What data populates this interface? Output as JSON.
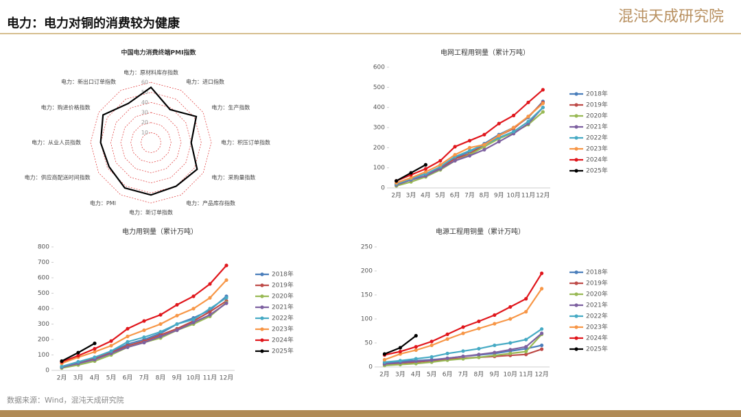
{
  "header": {
    "title": "电力：电力对铜的消费较为健康",
    "logo": "混沌天成研究院"
  },
  "footer": {
    "source": "数据来源：Wind，混沌天成研究院"
  },
  "chart_data": [
    {
      "type": "radar",
      "title": "中国电力消费终端PMI指数",
      "categories": [
        "电力：原材料库存指数",
        "电力：进口指数",
        "电力：生产指数",
        "电力：积压订单指数",
        "电力：采购量指数",
        "电力：产品库存指数",
        "电力：新订单指数",
        "电力：PMI",
        "电力：供应商配送时间指数",
        "电力：从业人员指数",
        "电力：购进价格指数",
        "电力：新出口订单指数"
      ],
      "values": [
        55,
        38,
        52,
        40,
        53,
        50,
        52,
        52,
        48,
        50,
        55,
        45
      ],
      "color": "#000000",
      "grid_color": "#e03030",
      "rlim": [
        0,
        60
      ],
      "rticks": [
        10,
        20,
        30,
        40,
        50,
        60
      ]
    },
    {
      "type": "line",
      "title": "电网工程用铜量（累计万吨）",
      "categories": [
        "2月",
        "3月",
        "4月",
        "5月",
        "6月",
        "7月",
        "8月",
        "9月",
        "10月",
        "11月",
        "12月"
      ],
      "ylim": [
        0,
        600
      ],
      "yticks": [
        0,
        100,
        200,
        300,
        400,
        500,
        600
      ],
      "series": [
        {
          "name": "2018年",
          "color": "#4a7ebb",
          "values": [
            20,
            45,
            70,
            100,
            150,
            180,
            220,
            265,
            300,
            350,
            430
          ]
        },
        {
          "name": "2019年",
          "color": "#be4b48",
          "values": [
            20,
            45,
            70,
            100,
            145,
            170,
            215,
            260,
            295,
            355,
            425
          ]
        },
        {
          "name": "2020年",
          "color": "#98b954",
          "values": [
            10,
            30,
            55,
            90,
            135,
            165,
            205,
            245,
            275,
            315,
            378
          ]
        },
        {
          "name": "2021年",
          "color": "#7d60a0",
          "values": [
            15,
            40,
            60,
            95,
            135,
            160,
            190,
            230,
            270,
            320,
            400
          ]
        },
        {
          "name": "2022年",
          "color": "#46aac4",
          "values": [
            20,
            45,
            70,
            105,
            155,
            185,
            215,
            250,
            280,
            330,
            400
          ]
        },
        {
          "name": "2023年",
          "color": "#f79646",
          "values": [
            25,
            50,
            80,
            115,
            165,
            200,
            215,
            260,
            300,
            355,
            420
          ]
        },
        {
          "name": "2024年",
          "color": "#e0161c",
          "values": [
            35,
            65,
            95,
            135,
            205,
            235,
            265,
            320,
            360,
            425,
            488
          ]
        },
        {
          "name": "2025年",
          "color": "#000000",
          "values": [
            35,
            75,
            115,
            null,
            null,
            null,
            null,
            null,
            null,
            null,
            null
          ]
        }
      ]
    },
    {
      "type": "line",
      "title": "电力用铜量（累计万吨）",
      "categories": [
        "2月",
        "3月",
        "4月",
        "5月",
        "6月",
        "7月",
        "8月",
        "9月",
        "10月",
        "11月",
        "12月"
      ],
      "ylim": [
        0,
        800
      ],
      "yticks": [
        0,
        100,
        200,
        300,
        400,
        500,
        600,
        700,
        800
      ],
      "series": [
        {
          "name": "2018年",
          "color": "#4a7ebb",
          "values": [
            25,
            55,
            80,
            120,
            170,
            200,
            240,
            300,
            340,
            390,
            480
          ]
        },
        {
          "name": "2019年",
          "color": "#be4b48",
          "values": [
            20,
            50,
            75,
            115,
            160,
            190,
            230,
            270,
            320,
            380,
            450
          ]
        },
        {
          "name": "2020年",
          "color": "#98b954",
          "values": [
            15,
            35,
            60,
            100,
            150,
            180,
            210,
            260,
            300,
            350,
            440
          ]
        },
        {
          "name": "2021年",
          "color": "#7d60a0",
          "values": [
            20,
            45,
            70,
            110,
            150,
            180,
            220,
            260,
            310,
            360,
            435
          ]
        },
        {
          "name": "2022年",
          "color": "#46aac4",
          "values": [
            25,
            55,
            85,
            125,
            185,
            215,
            250,
            300,
            330,
            400,
            470
          ]
        },
        {
          "name": "2023年",
          "color": "#f79646",
          "values": [
            45,
            85,
            120,
            160,
            220,
            260,
            300,
            355,
            400,
            470,
            585
          ]
        },
        {
          "name": "2024年",
          "color": "#e0161c",
          "values": [
            55,
            95,
            140,
            190,
            270,
            320,
            360,
            425,
            480,
            560,
            680
          ]
        },
        {
          "name": "2025年",
          "color": "#000000",
          "values": [
            60,
            115,
            175,
            null,
            null,
            null,
            null,
            null,
            null,
            null,
            null
          ]
        }
      ]
    },
    {
      "type": "line",
      "title": "电源工程用铜量（累计万吨）",
      "categories": [
        "2月",
        "3月",
        "4月",
        "5月",
        "6月",
        "7月",
        "8月",
        "9月",
        "10月",
        "11月",
        "12月"
      ],
      "ylim": [
        0,
        250
      ],
      "yticks": [
        0,
        50,
        100,
        150,
        200,
        250
      ],
      "series": [
        {
          "name": "2018年",
          "color": "#4a7ebb",
          "values": [
            8,
            12,
            13,
            15,
            18,
            22,
            25,
            28,
            33,
            38,
            45
          ]
        },
        {
          "name": "2019年",
          "color": "#be4b48",
          "values": [
            5,
            8,
            10,
            13,
            16,
            18,
            20,
            22,
            24,
            26,
            37
          ]
        },
        {
          "name": "2020年",
          "color": "#98b954",
          "values": [
            3,
            5,
            7,
            10,
            14,
            17,
            20,
            24,
            28,
            32,
            68
          ]
        },
        {
          "name": "2021年",
          "color": "#7d60a0",
          "values": [
            6,
            9,
            12,
            14,
            18,
            22,
            26,
            30,
            36,
            42,
            70
          ]
        },
        {
          "name": "2022年",
          "color": "#46aac4",
          "values": [
            10,
            13,
            17,
            21,
            28,
            33,
            38,
            45,
            50,
            57,
            79
          ]
        },
        {
          "name": "2023年",
          "color": "#f79646",
          "values": [
            15,
            27,
            35,
            45,
            58,
            70,
            80,
            90,
            100,
            115,
            163
          ]
        },
        {
          "name": "2024年",
          "color": "#e0161c",
          "values": [
            25,
            32,
            42,
            53,
            68,
            83,
            95,
            108,
            125,
            142,
            195
          ]
        },
        {
          "name": "2025年",
          "color": "#000000",
          "values": [
            27,
            40,
            65,
            null,
            null,
            null,
            null,
            null,
            null,
            null,
            null
          ]
        }
      ]
    }
  ]
}
